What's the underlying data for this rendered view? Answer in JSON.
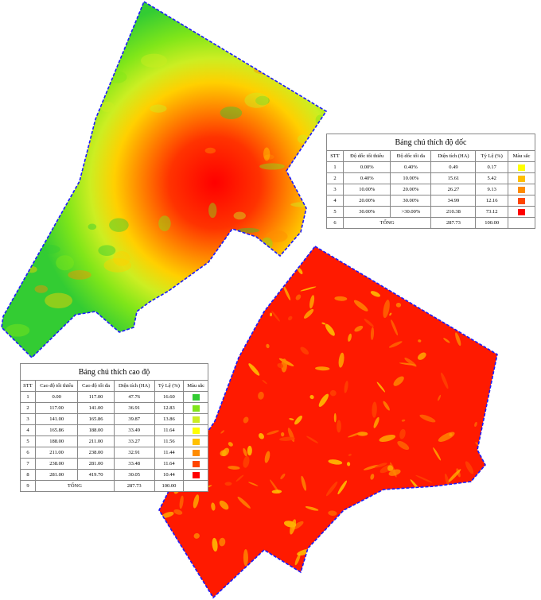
{
  "slope_table": {
    "title": "Bảng chú thích độ dốc",
    "headers": [
      "STT",
      "Độ dốc tối thiểu",
      "Độ dốc tối đa",
      "Diện tích (HA)",
      "Tỷ Lệ (%)",
      "Màu sắc"
    ],
    "rows": [
      [
        "1",
        "0.00%",
        "0.40%",
        "0.49",
        "0.17"
      ],
      [
        "2",
        "0.40%",
        "10.00%",
        "15.61",
        "5.42"
      ],
      [
        "3",
        "10.00%",
        "20.00%",
        "26.27",
        "9.13"
      ],
      [
        "4",
        "20.00%",
        "30.00%",
        "34.99",
        "12.16"
      ],
      [
        "5",
        "30.00%",
        ">30.00%",
        "210.38",
        "73.12"
      ]
    ],
    "colors": [
      "#ffff00",
      "#ffc000",
      "#ff8c00",
      "#ff4500",
      "#ff0000"
    ],
    "total": [
      "6",
      "TỔNG",
      "287.73",
      "100.00"
    ]
  },
  "elevation_table": {
    "title": "Bảng chú thích cao độ",
    "headers": [
      "STT",
      "Cao độ tối thiểu",
      "Cao độ tối đa",
      "Diện tích (HA)",
      "Tỷ Lệ (%)",
      "Màu sắc"
    ],
    "rows": [
      [
        "1",
        "0.00",
        "117.00",
        "47.76",
        "16.60"
      ],
      [
        "2",
        "117.00",
        "141.00",
        "36.91",
        "12.83"
      ],
      [
        "3",
        "141.00",
        "165.86",
        "39.87",
        "13.86"
      ],
      [
        "4",
        "165.86",
        "188.00",
        "33.49",
        "11.64"
      ],
      [
        "5",
        "188.00",
        "211.00",
        "33.27",
        "11.56"
      ],
      [
        "6",
        "211.00",
        "238.00",
        "32.91",
        "11.44"
      ],
      [
        "7",
        "238.00",
        "281.00",
        "33.48",
        "11.64"
      ],
      [
        "8",
        "281.00",
        "419.70",
        "30.05",
        "10.44"
      ]
    ],
    "colors": [
      "#33cc33",
      "#80e619",
      "#ccee22",
      "#ffff00",
      "#ffc000",
      "#ff8c00",
      "#ff4500",
      "#ff0000"
    ],
    "total": [
      "9",
      "TỔNG",
      "287.73",
      "100.00"
    ]
  }
}
